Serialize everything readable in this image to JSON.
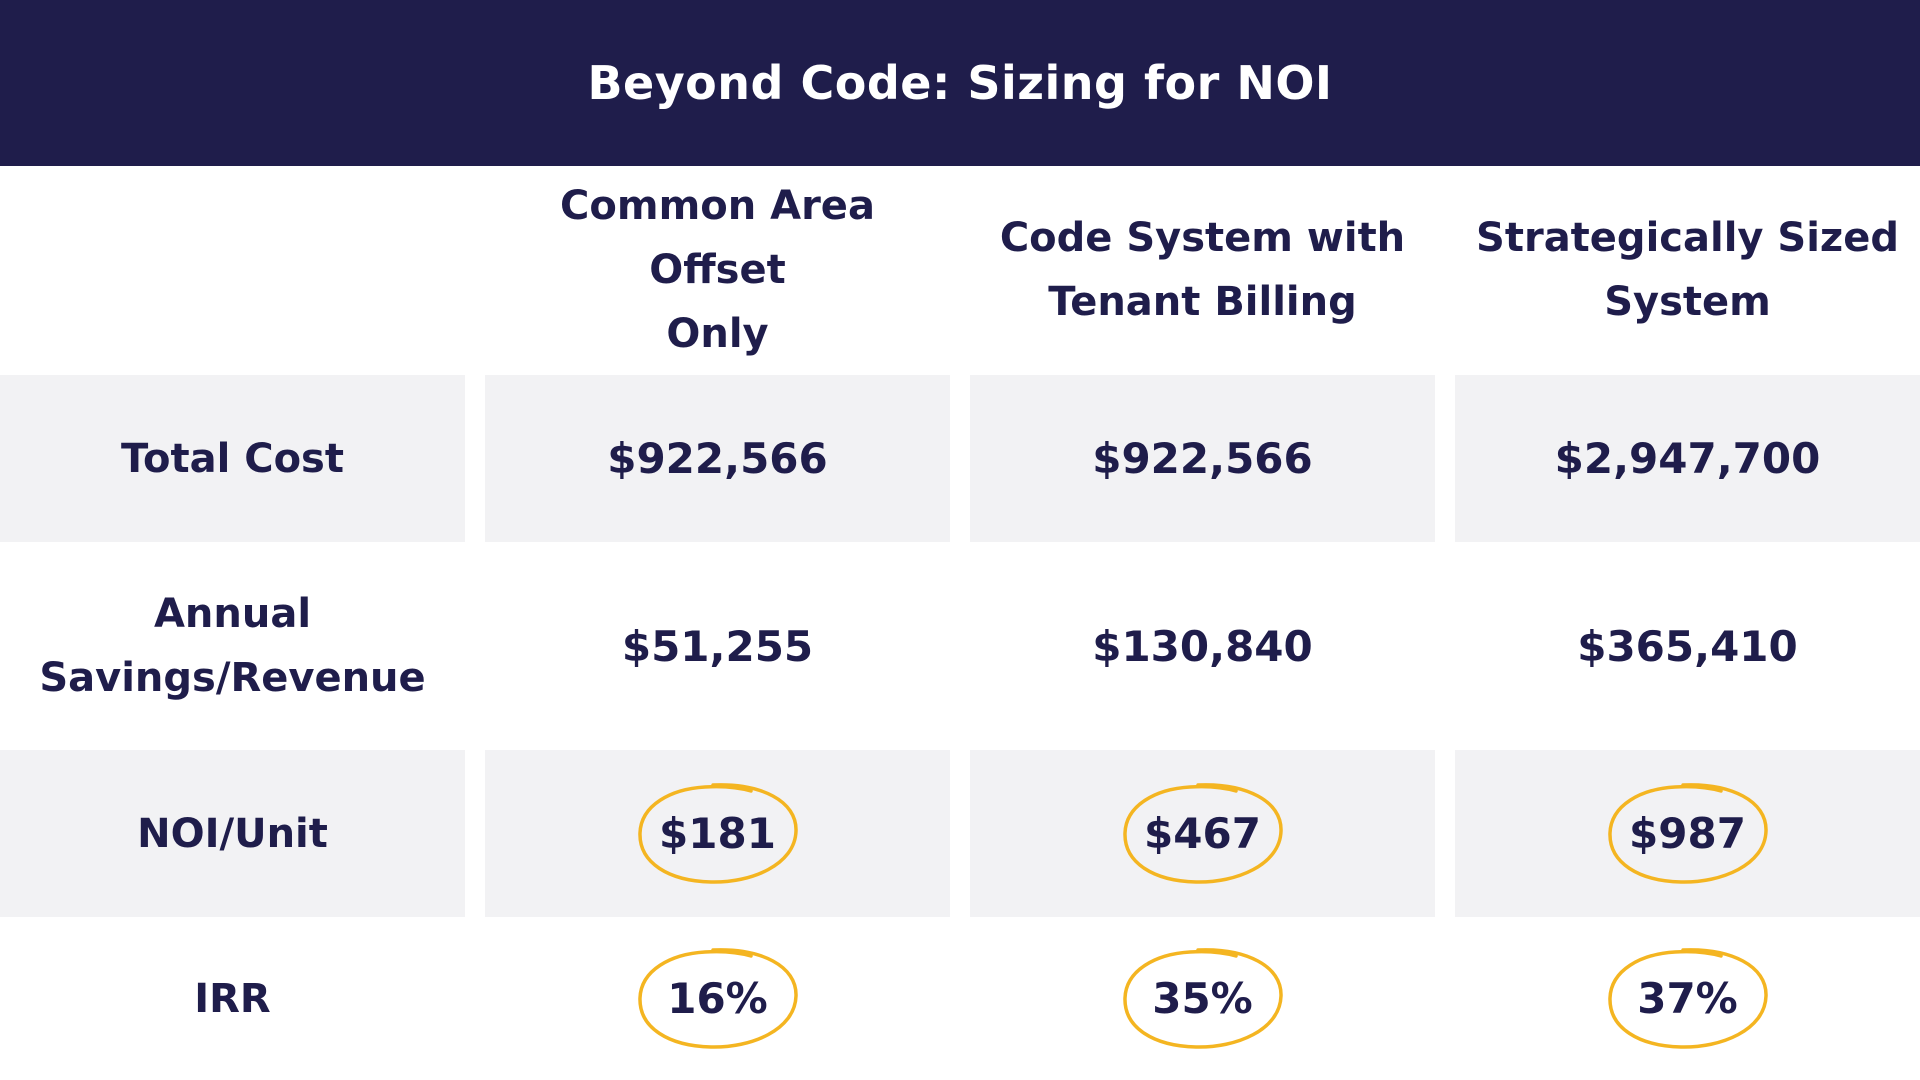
{
  "title": "Beyond Code: Sizing for NOI",
  "columns": [
    {
      "line1": "Common Area Offset",
      "line2": "Only"
    },
    {
      "line1": "Code System with",
      "line2": "Tenant Billing"
    },
    {
      "line1": "Strategically Sized",
      "line2": "System"
    }
  ],
  "rows": [
    {
      "label_line1": "Total Cost",
      "label_line2": "",
      "values": [
        "$922,566",
        "$922,566",
        "$2,947,700"
      ]
    },
    {
      "label_line1": "Annual",
      "label_line2": "Savings/Revenue",
      "values": [
        "$51,255",
        "$130,840",
        "$365,410"
      ]
    },
    {
      "label_line1": "NOI/Unit",
      "label_line2": "",
      "values": [
        "$181",
        "$467",
        "$987"
      ]
    },
    {
      "label_line1": "IRR",
      "label_line2": "",
      "values": [
        "16%",
        "35%",
        "37%"
      ]
    }
  ],
  "colors": {
    "banner": "#1f1d4b",
    "text": "#1f1d4b",
    "highlight": "#f4b521",
    "shade": "#f2f2f4"
  }
}
